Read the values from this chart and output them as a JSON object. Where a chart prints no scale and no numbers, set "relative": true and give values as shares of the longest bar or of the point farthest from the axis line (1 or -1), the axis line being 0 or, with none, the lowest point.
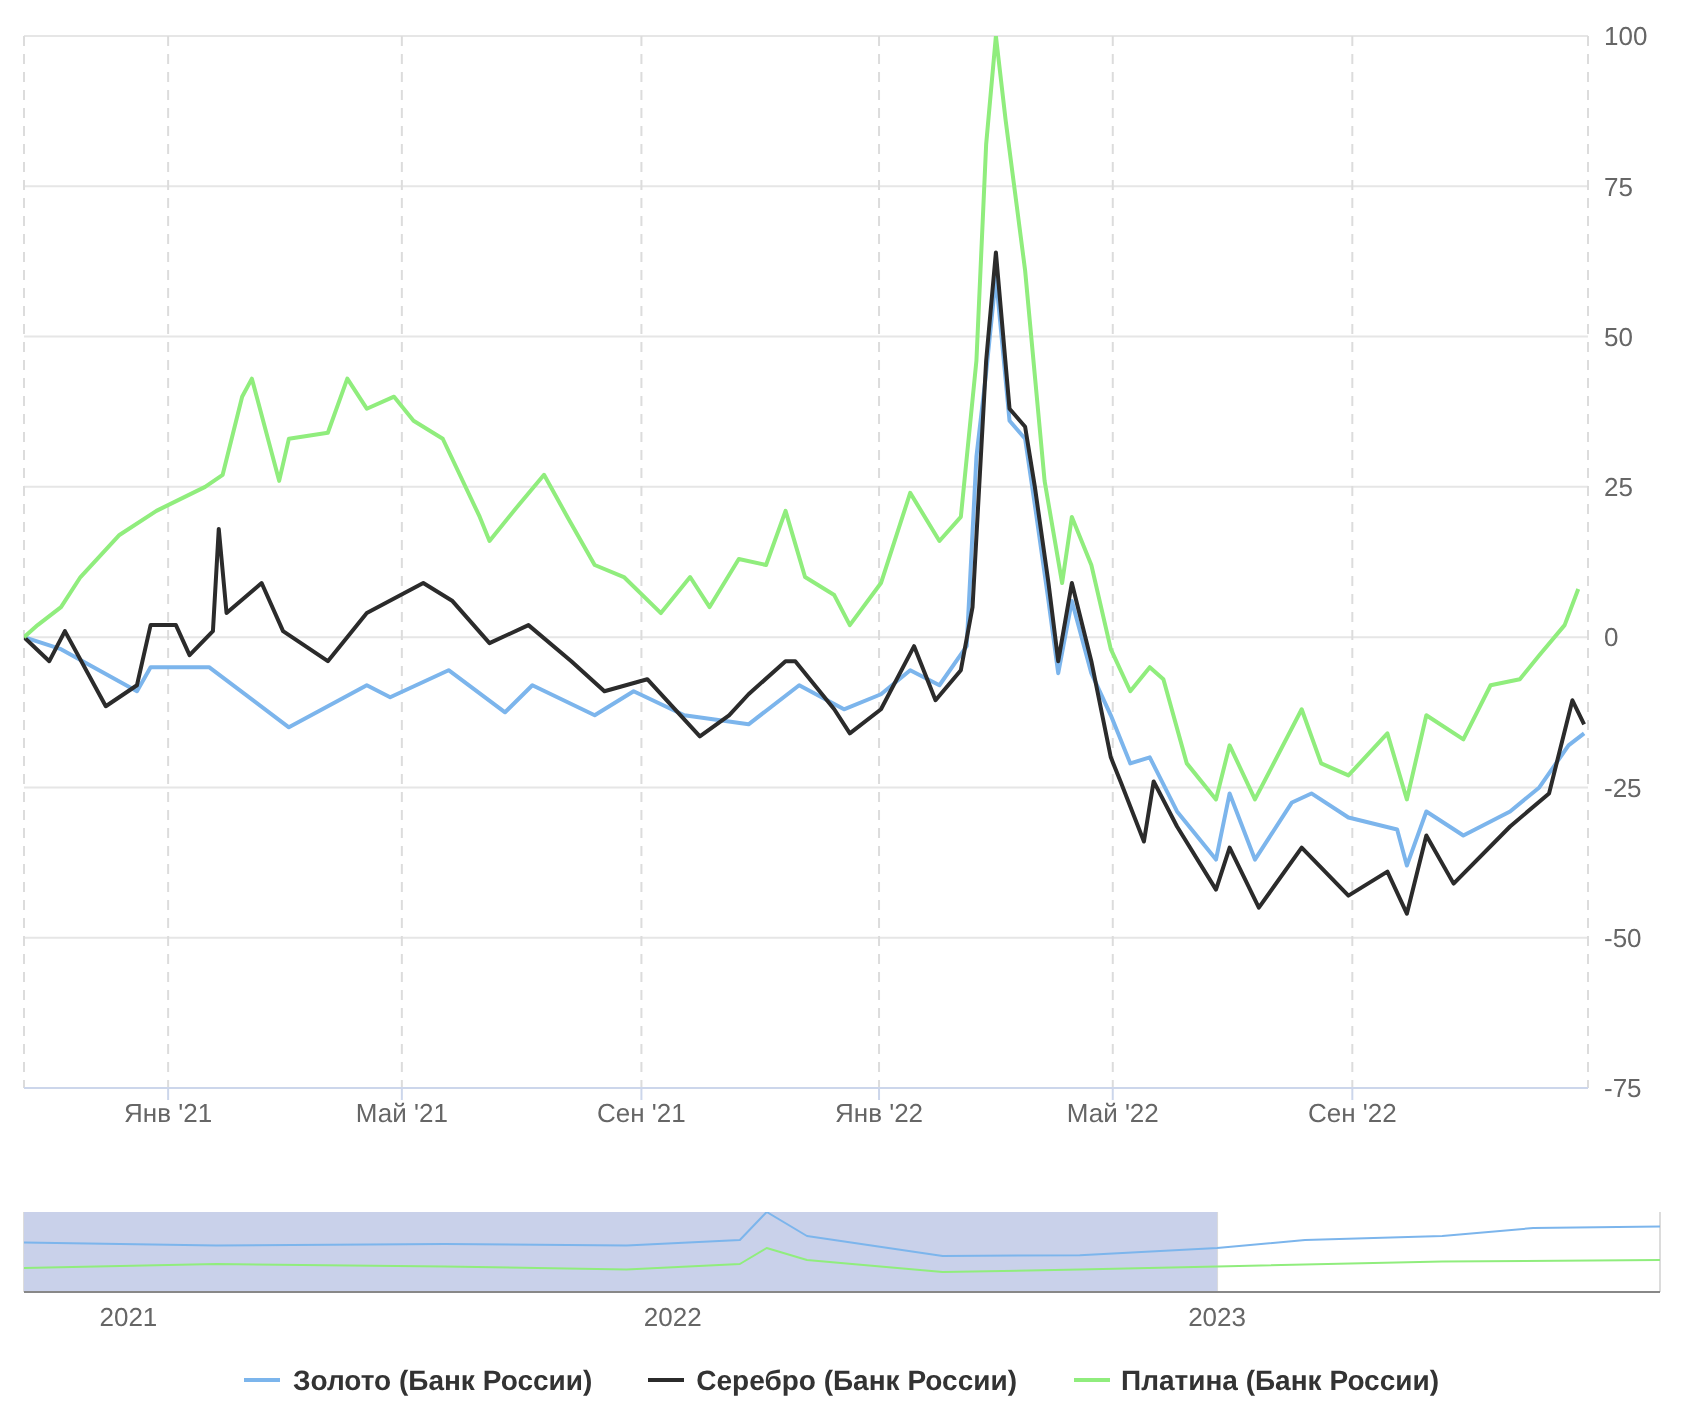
{
  "chart_data": [
    {
      "type": "line",
      "xlim": [
        "2020-10-19",
        "2022-12-31"
      ],
      "ylim": [
        -75,
        100
      ],
      "yticks": [
        -75,
        -50,
        -25,
        0,
        25,
        50,
        75,
        100
      ],
      "xticks": [
        {
          "value": "2021-01-01",
          "label": "Янв '21"
        },
        {
          "value": "2021-05-01",
          "label": "Май '21"
        },
        {
          "value": "2021-09-01",
          "label": "Сен '21"
        },
        {
          "value": "2022-01-01",
          "label": "Янв '22"
        },
        {
          "value": "2022-05-01",
          "label": "Май '22"
        },
        {
          "value": "2022-09-01",
          "label": "Сен '22"
        }
      ],
      "grid": true,
      "legend": "bottom",
      "marker": "none",
      "line_style": "solid",
      "series": [
        {
          "name": "Золото (Банк России)",
          "color": "#7cb5ec",
          "x": [
            "2020-10-19",
            "2020-11-07",
            "2020-12-16",
            "2020-12-23",
            "2021-01-22",
            "2021-03-04",
            "2021-04-13",
            "2021-04-25",
            "2021-05-25",
            "2021-06-23",
            "2021-07-07",
            "2021-08-08",
            "2021-08-28",
            "2021-09-23",
            "2021-10-26",
            "2021-11-21",
            "2021-12-14",
            "2022-01-02",
            "2022-01-17",
            "2022-02-01",
            "2022-02-15",
            "2022-02-20",
            "2022-02-25",
            "2022-03-02",
            "2022-03-09",
            "2022-03-17",
            "2022-03-22",
            "2022-03-29",
            "2022-04-03",
            "2022-04-10",
            "2022-04-20",
            "2022-04-30",
            "2022-05-10",
            "2022-05-20",
            "2022-06-03",
            "2022-06-23",
            "2022-06-30",
            "2022-07-13",
            "2022-08-01",
            "2022-08-11",
            "2022-08-30",
            "2022-09-24",
            "2022-09-29",
            "2022-10-09",
            "2022-10-28",
            "2022-11-21",
            "2022-12-06",
            "2022-12-21",
            "2022-12-29"
          ],
          "values": [
            0,
            -2,
            -9,
            -5,
            -5,
            -15,
            -8,
            -10,
            -5.5,
            -12.5,
            -8,
            -13,
            -9,
            -13,
            -14.5,
            -8,
            -12,
            -9.5,
            -5.5,
            -8,
            -1.5,
            30,
            44,
            60,
            36,
            33,
            22,
            6,
            -6,
            6,
            -6,
            -13,
            -21,
            -20,
            -29,
            -37,
            -26,
            -37,
            -27.5,
            -26,
            -30,
            -32,
            -38,
            -29,
            -33,
            -29,
            -25,
            -18,
            -16
          ]
        },
        {
          "name": "Серебро (Банк России)",
          "color": "#2b2b2b",
          "x": [
            "2020-10-19",
            "2020-11-01",
            "2020-11-09",
            "2020-11-30",
            "2020-12-16",
            "2020-12-23",
            "2021-01-05",
            "2021-01-12",
            "2021-01-24",
            "2021-01-27",
            "2021-01-31",
            "2021-02-18",
            "2021-03-01",
            "2021-03-24",
            "2021-04-13",
            "2021-05-12",
            "2021-05-27",
            "2021-06-15",
            "2021-07-05",
            "2021-07-27",
            "2021-08-13",
            "2021-09-04",
            "2021-10-01",
            "2021-10-16",
            "2021-10-26",
            "2021-11-14",
            "2021-11-19",
            "2021-12-09",
            "2021-12-17",
            "2022-01-02",
            "2022-01-19",
            "2022-01-30",
            "2022-02-12",
            "2022-02-18",
            "2022-02-25",
            "2022-03-02",
            "2022-03-09",
            "2022-03-17",
            "2022-03-22",
            "2022-03-29",
            "2022-04-03",
            "2022-04-10",
            "2022-04-20",
            "2022-04-30",
            "2022-05-05",
            "2022-05-17",
            "2022-05-22",
            "2022-06-03",
            "2022-06-23",
            "2022-06-30",
            "2022-07-15",
            "2022-08-06",
            "2022-08-30",
            "2022-09-19",
            "2022-09-29",
            "2022-10-09",
            "2022-10-23",
            "2022-11-21",
            "2022-12-11",
            "2022-12-23",
            "2022-12-29"
          ],
          "values": [
            0,
            -4,
            1,
            -11.5,
            -8,
            2,
            2,
            -3,
            1,
            18,
            4,
            9,
            1,
            -4,
            4,
            9,
            6,
            -1,
            2,
            -4,
            -9,
            -7,
            -16.5,
            -13,
            -9.5,
            -4,
            -4,
            -12,
            -16,
            -12,
            -1.5,
            -10.5,
            -5.5,
            5,
            46,
            64,
            38,
            35,
            25,
            9,
            -4,
            9,
            -4,
            -20,
            -24,
            -34,
            -24,
            -31.5,
            -42,
            -35,
            -45,
            -35,
            -43,
            -39,
            -46,
            -33,
            -41,
            -31.5,
            -26,
            -10.5,
            -14.5
          ]
        },
        {
          "name": "Платина (Банк России)",
          "color": "#90ed7d",
          "x": [
            "2020-10-19",
            "2020-10-26",
            "2020-11-07",
            "2020-11-17",
            "2020-12-07",
            "2020-12-26",
            "2021-01-20",
            "2021-01-29",
            "2021-02-08",
            "2021-02-13",
            "2021-02-27",
            "2021-03-04",
            "2021-03-24",
            "2021-04-03",
            "2021-04-13",
            "2021-04-27",
            "2021-05-07",
            "2021-05-22",
            "2021-06-10",
            "2021-06-15",
            "2021-06-30",
            "2021-07-13",
            "2021-07-25",
            "2021-08-08",
            "2021-08-23",
            "2021-09-11",
            "2021-09-26",
            "2021-10-06",
            "2021-10-21",
            "2021-11-04",
            "2021-11-14",
            "2021-11-24",
            "2021-12-09",
            "2021-12-17",
            "2022-01-02",
            "2022-01-17",
            "2022-02-01",
            "2022-02-12",
            "2022-02-20",
            "2022-02-25",
            "2022-03-02",
            "2022-03-07",
            "2022-03-17",
            "2022-03-27",
            "2022-04-05",
            "2022-04-10",
            "2022-04-20",
            "2022-04-30",
            "2022-05-10",
            "2022-05-20",
            "2022-05-27",
            "2022-06-08",
            "2022-06-23",
            "2022-06-30",
            "2022-07-13",
            "2022-08-06",
            "2022-08-16",
            "2022-08-30",
            "2022-09-19",
            "2022-09-29",
            "2022-10-09",
            "2022-10-28",
            "2022-11-11",
            "2022-11-26",
            "2022-12-06",
            "2022-12-19",
            "2022-12-26"
          ],
          "values": [
            0,
            2,
            5,
            10,
            17,
            21,
            25,
            27,
            40,
            43,
            26,
            33,
            34,
            43,
            38,
            40,
            36,
            33,
            20,
            16,
            22,
            27,
            20,
            12,
            10,
            4,
            10,
            5,
            13,
            12,
            21,
            10,
            7,
            2,
            9,
            24,
            16,
            20,
            46,
            82,
            100,
            86,
            61,
            26,
            9,
            20,
            12,
            -2,
            -9,
            -5,
            -7,
            -21,
            -27,
            -18,
            -27,
            -12,
            -21,
            -23,
            -16,
            -27,
            -13,
            -17,
            -8,
            -7,
            -3,
            2,
            8
          ]
        }
      ]
    },
    {
      "type": "line",
      "relative": true,
      "xlim": [
        "2020-10-23",
        "2023-10-25"
      ],
      "xticks": [
        {
          "value": "2021-01-01",
          "label": "2021"
        },
        {
          "value": "2022-01-01",
          "label": "2022"
        },
        {
          "value": "2023-01-01",
          "label": "2023"
        }
      ],
      "tick_labels": "x",
      "grid": "x",
      "marker": "none",
      "bands": [
        {
          "axis": "x",
          "from": "2020-10-23",
          "to": "2023-01-01",
          "color": "#c9d1ea"
        }
      ],
      "series": [
        {
          "color": "#7cb5ec",
          "x": [
            "2020-10-23",
            "2021-03-01",
            "2021-08-01",
            "2021-12-01",
            "2022-02-15",
            "2022-03-05",
            "2022-04-01",
            "2022-07-01",
            "2022-10-01",
            "2023-01-01",
            "2023-03-01",
            "2023-06-01",
            "2023-08-01",
            "2023-10-25"
          ],
          "values": [
            0.62,
            0.58,
            0.6,
            0.58,
            0.65,
            1,
            0.7,
            0.45,
            0.46,
            0.55,
            0.65,
            0.7,
            0.8,
            0.82
          ]
        },
        {
          "color": "#90ed7d",
          "x": [
            "2020-10-23",
            "2021-03-01",
            "2021-08-01",
            "2021-12-01",
            "2022-02-15",
            "2022-03-05",
            "2022-04-01",
            "2022-07-01",
            "2022-10-01",
            "2023-01-01",
            "2023-06-01",
            "2023-10-25"
          ],
          "values": [
            0.3,
            0.35,
            0.32,
            0.28,
            0.35,
            0.55,
            0.4,
            0.25,
            0.28,
            0.32,
            0.38,
            0.4
          ]
        }
      ]
    }
  ]
}
